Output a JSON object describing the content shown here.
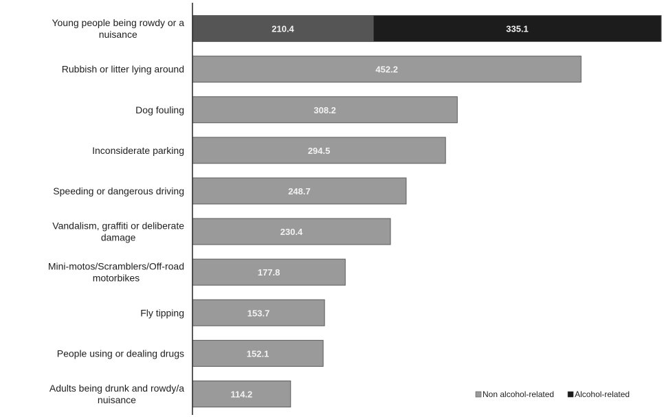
{
  "chart_data": {
    "type": "bar",
    "orientation": "horizontal",
    "stacked": true,
    "categories": [
      "Young people being rowdy or a nuisance",
      "Rubbish or litter lying around",
      "Dog fouling",
      "Inconsiderate parking",
      "Speeding or dangerous driving",
      "Vandalism, graffiti or deliberate damage",
      "Mini-motos/Scramblers/Off-road motorbikes",
      "Fly tipping",
      "People using or dealing drugs",
      "Adults being drunk and rowdy/a nuisance"
    ],
    "category_label_lines": [
      [
        "Young people being rowdy or a",
        "nuisance"
      ],
      [
        "Rubbish or litter lying around"
      ],
      [
        "Dog fouling"
      ],
      [
        "Inconsiderate parking"
      ],
      [
        "Speeding or dangerous driving"
      ],
      [
        "Vandalism, graffiti or deliberate",
        "damage"
      ],
      [
        "Mini-motos/Scramblers/Off-road",
        "motorbikes"
      ],
      [
        "Fly tipping"
      ],
      [
        "People using or dealing drugs"
      ],
      [
        "Adults being drunk and rowdy/a",
        "nuisance"
      ]
    ],
    "series": [
      {
        "name": "Non alcohol-related",
        "values": [
          210.4,
          452.2,
          308.2,
          294.5,
          248.7,
          230.4,
          177.8,
          153.7,
          152.1,
          114.2
        ],
        "labels": [
          "210.4",
          "452.2",
          "308.2",
          "294.5",
          "248.7",
          "230.4",
          "177.8",
          "153.7",
          "152.1",
          "114.2"
        ],
        "color": "#9a9a9a"
      },
      {
        "name": "Alcohol-related",
        "values": [
          335.1,
          0,
          0,
          0,
          0,
          0,
          0,
          0,
          0,
          0
        ],
        "labels": [
          "335.1",
          "",
          "",
          "",
          "",
          "",
          "",
          "",
          "",
          ""
        ],
        "color": "#1c1c1c"
      }
    ],
    "first_bar_first_segment_color": "#555555",
    "bar_border_color": "#5a5a5a",
    "axis_color": "#222222",
    "xlim": [
      0,
      545.5
    ],
    "grid": false,
    "legend_position": "bottom-right",
    "title": "",
    "xlabel": "",
    "ylabel": ""
  }
}
